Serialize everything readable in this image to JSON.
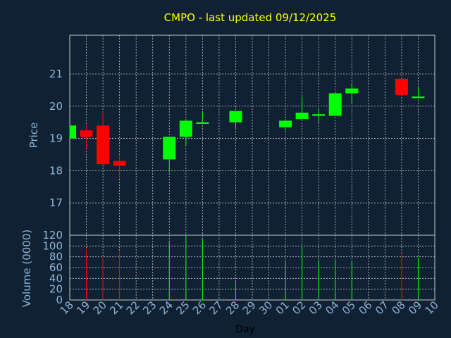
{
  "chart_data": {
    "type": "candlestick",
    "title": "CMPO - last updated 09/12/2025",
    "xlabel": "Day",
    "price_panel": {
      "ylabel": "Price",
      "yticks": [
        17,
        18,
        19,
        20,
        21
      ],
      "ylim": [
        16,
        22.2
      ]
    },
    "volume_panel": {
      "ylabel": "Volume (0000)",
      "yticks": [
        0,
        20,
        40,
        60,
        80,
        100,
        120
      ],
      "ylim": [
        0,
        120
      ]
    },
    "x_ticks": [
      "18",
      "19",
      "20",
      "21",
      "22",
      "23",
      "24",
      "25",
      "26",
      "27",
      "28",
      "29",
      "30",
      "01",
      "02",
      "03",
      "04",
      "05",
      "06",
      "07",
      "08",
      "09",
      "10"
    ],
    "candles": [
      {
        "day": "18",
        "open": 19.0,
        "high": 19.4,
        "low": 19.0,
        "close": 19.4,
        "volume": 0
      },
      {
        "day": "19",
        "open": 19.25,
        "high": 19.4,
        "low": 18.7,
        "close": 19.05,
        "volume": 95
      },
      {
        "day": "20",
        "open": 19.4,
        "high": 19.85,
        "low": 18.2,
        "close": 18.2,
        "volume": 80
      },
      {
        "day": "21",
        "open": 18.3,
        "high": 18.5,
        "low": 17.75,
        "close": 18.15,
        "volume": 90
      },
      {
        "day": "24",
        "open": 18.35,
        "high": 19.05,
        "low": 17.95,
        "close": 19.05,
        "volume": 110
      },
      {
        "day": "25",
        "open": 19.05,
        "high": 19.6,
        "low": 18.8,
        "close": 19.55,
        "volume": 120
      },
      {
        "day": "26",
        "open": 19.45,
        "high": 19.85,
        "low": 19.45,
        "close": 19.5,
        "volume": 115
      },
      {
        "day": "28",
        "open": 19.5,
        "high": 19.85,
        "low": 19.3,
        "close": 19.85,
        "volume": 35
      },
      {
        "day": "01",
        "open": 19.35,
        "high": 19.6,
        "low": 19.25,
        "close": 19.55,
        "volume": 70
      },
      {
        "day": "02",
        "open": 19.6,
        "high": 20.3,
        "low": 19.6,
        "close": 19.8,
        "volume": 100
      },
      {
        "day": "03",
        "open": 19.7,
        "high": 19.95,
        "low": 19.5,
        "close": 19.75,
        "volume": 75
      },
      {
        "day": "04",
        "open": 19.7,
        "high": 20.4,
        "low": 19.7,
        "close": 20.4,
        "volume": 75
      },
      {
        "day": "05",
        "open": 20.4,
        "high": 20.7,
        "low": 20.1,
        "close": 20.55,
        "volume": 72
      },
      {
        "day": "08",
        "open": 20.85,
        "high": 20.85,
        "low": 20.35,
        "close": 20.35,
        "volume": 85
      },
      {
        "day": "09",
        "open": 20.25,
        "high": 20.6,
        "low": 20.25,
        "close": 20.3,
        "volume": 78
      }
    ],
    "colors": {
      "background": "#0f2133",
      "up": "#00ff00",
      "down": "#ff0000",
      "grid": "#c8c8c8",
      "axis_text": "#8fb4d6",
      "title": "#ffff00"
    },
    "grid": true
  }
}
